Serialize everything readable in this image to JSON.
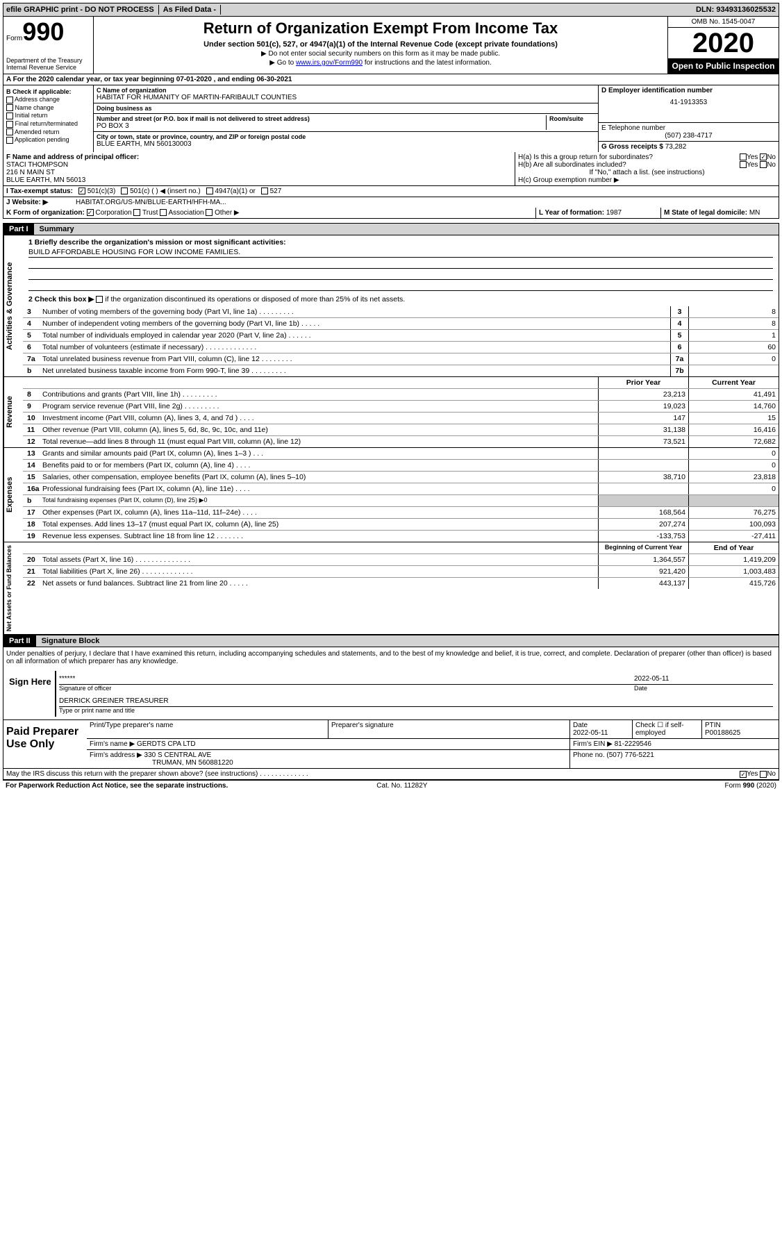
{
  "topbar": {
    "efile": "efile GRAPHIC print - DO NOT PROCESS",
    "asfiled": "As Filed Data -",
    "dln_label": "DLN:",
    "dln": "93493136025532"
  },
  "header": {
    "form_label": "Form",
    "form_num": "990",
    "dept": "Department of the Treasury",
    "irs": "Internal Revenue Service",
    "title": "Return of Organization Exempt From Income Tax",
    "sub": "Under section 501(c), 527, or 4947(a)(1) of the Internal Revenue Code (except private foundations)",
    "line1": "▶ Do not enter social security numbers on this form as it may be made public.",
    "line2_pre": "▶ Go to ",
    "line2_link": "www.irs.gov/Form990",
    "line2_post": " for instructions and the latest information.",
    "omb": "OMB No. 1545-0047",
    "year": "2020",
    "inspect": "Open to Public Inspection"
  },
  "A": "A  For the 2020 calendar year, or tax year beginning 07-01-2020   , and ending 06-30-2021",
  "B": {
    "title": "B Check if applicable:",
    "items": [
      "Address change",
      "Name change",
      "Initial return",
      "Final return/terminated",
      "Amended return",
      "Application pending"
    ]
  },
  "C": {
    "name_lbl": "C Name of organization",
    "name": "HABITAT FOR HUMANITY OF MARTIN-FARIBAULT COUNTIES",
    "dba_lbl": "Doing business as",
    "dba": "",
    "street_lbl": "Number and street (or P.O. box if mail is not delivered to street address)",
    "room_lbl": "Room/suite",
    "street": "PO BOX 3",
    "city_lbl": "City or town, state or province, country, and ZIP or foreign postal code",
    "city": "BLUE EARTH, MN  560130003"
  },
  "D": {
    "lbl": "D Employer identification number",
    "val": "41-1913353"
  },
  "E": {
    "lbl": "E Telephone number",
    "val": "(507) 238-4717"
  },
  "G": {
    "lbl": "G Gross receipts $",
    "val": "73,282"
  },
  "F": {
    "lbl": "F  Name and address of principal officer:",
    "name": "STACI THOMPSON",
    "street": "216 N MAIN ST",
    "city": "BLUE EARTH, MN  56013"
  },
  "H": {
    "a": "H(a)  Is this a group return for subordinates?",
    "a_yes": "Yes",
    "a_no": "No",
    "a_val": "No",
    "b": "H(b)  Are all subordinates included?",
    "b_yes": "Yes",
    "b_no": "No",
    "b_note": "If \"No,\" attach a list. (see instructions)",
    "c": "H(c)  Group exemption number ▶"
  },
  "I": {
    "lbl": "I  Tax-exempt status:",
    "opt1": "501(c)(3)",
    "opt2": "501(c) (  ) ◀ (insert no.)",
    "opt3": "4947(a)(1) or",
    "opt4": "527",
    "checked": "501(c)(3)"
  },
  "J": {
    "lbl": "J  Website: ▶",
    "val": "HABITAT.ORG/US-MN/BLUE-EARTH/HFH-MA..."
  },
  "K": {
    "lbl": "K Form of organization:",
    "opts": [
      "Corporation",
      "Trust",
      "Association",
      "Other ▶"
    ],
    "checked": "Corporation"
  },
  "L": {
    "lbl": "L Year of formation:",
    "val": "1987"
  },
  "M": {
    "lbl": "M State of legal domicile:",
    "val": "MN"
  },
  "part1": {
    "num": "Part I",
    "title": "Summary"
  },
  "mission": {
    "q1": "1 Briefly describe the organization's mission or most significant activities:",
    "text": "BUILD AFFORDABLE HOUSING FOR LOW INCOME FAMILIES.",
    "q2_pre": "2  Check this box ▶",
    "q2_post": " if the organization discontinued its operations or disposed of more than 25% of its net assets."
  },
  "gov": {
    "tab": "Activities & Governance",
    "lines": [
      {
        "n": "3",
        "t": "Number of voting members of the governing body (Part VI, line 1a)  .  .  .  .  .  .  .  .  .",
        "box": "3",
        "v": "8"
      },
      {
        "n": "4",
        "t": "Number of independent voting members of the governing body (Part VI, line 1b)  .  .  .  .  .",
        "box": "4",
        "v": "8"
      },
      {
        "n": "5",
        "t": "Total number of individuals employed in calendar year 2020 (Part V, line 2a)  .  .  .  .  .  .",
        "box": "5",
        "v": "1"
      },
      {
        "n": "6",
        "t": "Total number of volunteers (estimate if necessary)  .  .  .  .  .  .  .  .  .  .  .  .  .",
        "box": "6",
        "v": "60"
      },
      {
        "n": "7a",
        "t": "Total unrelated business revenue from Part VIII, column (C), line 12  .  .  .  .  .  .  .  .",
        "box": "7a",
        "v": "0"
      },
      {
        "n": "b",
        "t": "Net unrelated business taxable income from Form 990-T, line 39  .  .  .  .  .  .  .  .  .",
        "box": "7b",
        "v": ""
      }
    ]
  },
  "rev": {
    "tab": "Revenue",
    "hdr_prior": "Prior Year",
    "hdr_curr": "Current Year",
    "lines": [
      {
        "n": "8",
        "t": "Contributions and grants (Part VIII, line 1h)  .  .  .  .  .  .  .  .  .",
        "p": "23,213",
        "c": "41,491"
      },
      {
        "n": "9",
        "t": "Program service revenue (Part VIII, line 2g)  .  .  .  .  .  .  .  .  .",
        "p": "19,023",
        "c": "14,760"
      },
      {
        "n": "10",
        "t": "Investment income (Part VIII, column (A), lines 3, 4, and 7d )  .  .  .  .",
        "p": "147",
        "c": "15"
      },
      {
        "n": "11",
        "t": "Other revenue (Part VIII, column (A), lines 5, 6d, 8c, 9c, 10c, and 11e)",
        "p": "31,138",
        "c": "16,416"
      },
      {
        "n": "12",
        "t": "Total revenue—add lines 8 through 11 (must equal Part VIII, column (A), line 12)",
        "p": "73,521",
        "c": "72,682"
      }
    ]
  },
  "exp": {
    "tab": "Expenses",
    "lines": [
      {
        "n": "13",
        "t": "Grants and similar amounts paid (Part IX, column (A), lines 1–3 )  .  .  .",
        "p": "",
        "c": "0"
      },
      {
        "n": "14",
        "t": "Benefits paid to or for members (Part IX, column (A), line 4)  .  .  .  .",
        "p": "",
        "c": "0"
      },
      {
        "n": "15",
        "t": "Salaries, other compensation, employee benefits (Part IX, column (A), lines 5–10)",
        "p": "38,710",
        "c": "23,818"
      },
      {
        "n": "16a",
        "t": "Professional fundraising fees (Part IX, column (A), line 11e)  .  .  .  .",
        "p": "",
        "c": "0"
      },
      {
        "n": "b",
        "t": "Total fundraising expenses (Part IX, column (D), line 25) ▶0",
        "p": null,
        "c": null
      },
      {
        "n": "17",
        "t": "Other expenses (Part IX, column (A), lines 11a–11d, 11f–24e)  .  .  .  .",
        "p": "168,564",
        "c": "76,275"
      },
      {
        "n": "18",
        "t": "Total expenses. Add lines 13–17 (must equal Part IX, column (A), line 25)",
        "p": "207,274",
        "c": "100,093"
      },
      {
        "n": "19",
        "t": "Revenue less expenses. Subtract line 18 from line 12 .  .  .  .  .  .  .",
        "p": "-133,753",
        "c": "-27,411"
      }
    ]
  },
  "net": {
    "tab": "Net Assets or Fund Balances",
    "hdr_beg": "Beginning of Current Year",
    "hdr_end": "End of Year",
    "lines": [
      {
        "n": "20",
        "t": "Total assets (Part X, line 16)  .  .  .  .  .  .  .  .  .  .  .  .  .  .",
        "p": "1,364,557",
        "c": "1,419,209"
      },
      {
        "n": "21",
        "t": "Total liabilities (Part X, line 26) .  .  .  .  .  .  .  .  .  .  .  .  .",
        "p": "921,420",
        "c": "1,003,483"
      },
      {
        "n": "22",
        "t": "Net assets or fund balances. Subtract line 21 from line 20 .  .  .  .  .",
        "p": "443,137",
        "c": "415,726"
      }
    ]
  },
  "part2": {
    "num": "Part II",
    "title": "Signature Block"
  },
  "perjury": "Under penalties of perjury, I declare that I have examined this return, including accompanying schedules and statements, and to the best of my knowledge and belief, it is true, correct, and complete. Declaration of preparer (other than officer) is based on all information of which preparer has any knowledge.",
  "sign": {
    "here": "Sign Here",
    "stars": "******",
    "sig_lbl": "Signature of officer",
    "date": "2022-05-11",
    "date_lbl": "Date",
    "name": "DERRICK GREINER TREASURER",
    "name_lbl": "Type or print name and title"
  },
  "paid": {
    "lbl": "Paid Preparer Use Only",
    "h_print": "Print/Type preparer's name",
    "h_sig": "Preparer's signature",
    "h_date": "Date",
    "date": "2022-05-11",
    "h_check": "Check ☐ if self-employed",
    "h_ptin": "PTIN",
    "ptin": "P00188625",
    "firm_name_lbl": "Firm's name    ▶",
    "firm_name": "GERDTS CPA LTD",
    "firm_ein_lbl": "Firm's EIN ▶",
    "firm_ein": "81-2229546",
    "firm_addr_lbl": "Firm's address ▶",
    "firm_addr": "330 S CENTRAL AVE",
    "firm_city": "TRUMAN, MN  560881220",
    "phone_lbl": "Phone no.",
    "phone": "(507) 776-5221"
  },
  "discuss": {
    "q": "May the IRS discuss this return with the preparer shown above? (see instructions)  .  .  .  .  .  .  .  .  .  .  .  .  .",
    "yes": "Yes",
    "no": "No",
    "val": "Yes"
  },
  "footer": {
    "left": "For Paperwork Reduction Act Notice, see the separate instructions.",
    "mid": "Cat. No. 11282Y",
    "right_pre": "Form ",
    "right_b": "990",
    "right_post": " (2020)"
  }
}
